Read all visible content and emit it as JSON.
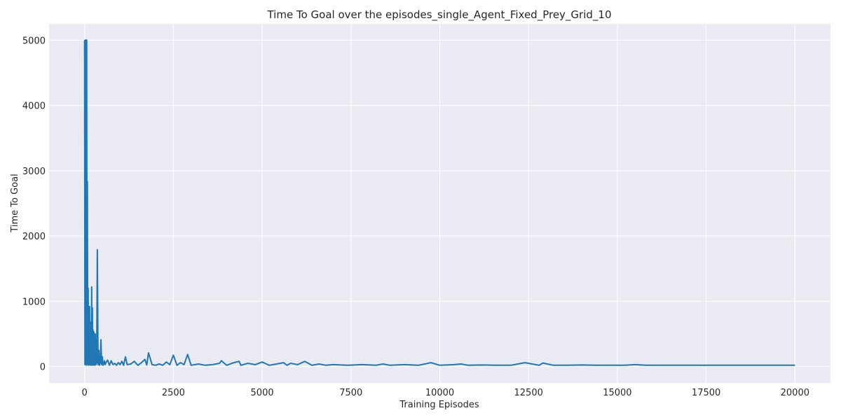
{
  "chart_data": {
    "type": "line",
    "title": "Time To Goal over the episodes_single_Agent_Fixed_Prey_Grid_10",
    "xlabel": "Training Episodes",
    "ylabel": "Time To Goal",
    "xlim": [
      -1000,
      21000
    ],
    "ylim": [
      -250,
      5250
    ],
    "xticks": [
      0,
      2500,
      5000,
      7500,
      10000,
      12500,
      15000,
      17500,
      20000
    ],
    "yticks": [
      0,
      1000,
      2000,
      3000,
      4000,
      5000
    ],
    "grid": true,
    "style": {
      "background": "#eaeaf2",
      "grid_color": "#ffffff",
      "line_color": "#1f77b4"
    },
    "series": [
      {
        "x": [
          0,
          10,
          20,
          30,
          40,
          50,
          60,
          70,
          80,
          90,
          100,
          110,
          120,
          130,
          140,
          150,
          160,
          170,
          180,
          190,
          200,
          210,
          220,
          230,
          240,
          250,
          260,
          270,
          280,
          290,
          300,
          320,
          340,
          360,
          380,
          400,
          420,
          440,
          460,
          480,
          500,
          520,
          540,
          560,
          580,
          600,
          650,
          700,
          750,
          800,
          850,
          900,
          950,
          1000,
          1050,
          1100,
          1150,
          1200,
          1300,
          1400,
          1500,
          1600,
          1700,
          1750,
          1800,
          1900,
          2000,
          2100,
          2200,
          2300,
          2400,
          2500,
          2600,
          2700,
          2800,
          2900,
          3000,
          3200,
          3400,
          3600,
          3800,
          3850,
          4000,
          4200,
          4350,
          4400,
          4600,
          4800,
          5000,
          5200,
          5400,
          5600,
          5700,
          5800,
          6000,
          6200,
          6400,
          6600,
          6800,
          7000,
          7400,
          7800,
          8200,
          8400,
          8600,
          9000,
          9400,
          9750,
          10000,
          10400,
          10600,
          10800,
          11200,
          11600,
          12000,
          12400,
          12800,
          12900,
          13200,
          13600,
          14000,
          14400,
          14800,
          15200,
          15500,
          15800,
          16200,
          16600,
          17000,
          17400,
          17800,
          18200,
          18600,
          19000,
          19400,
          19800,
          20000
        ],
        "y": [
          5000,
          30,
          5000,
          40,
          5000,
          20,
          5000,
          60,
          2830,
          30,
          1200,
          20,
          600,
          40,
          920,
          25,
          680,
          30,
          450,
          20,
          1220,
          35,
          900,
          20,
          560,
          25,
          530,
          30,
          250,
          20,
          500,
          30,
          60,
          1790,
          30,
          250,
          20,
          60,
          410,
          30,
          150,
          20,
          40,
          90,
          30,
          60,
          100,
          20,
          90,
          30,
          50,
          20,
          60,
          30,
          80,
          20,
          150,
          30,
          40,
          80,
          20,
          60,
          110,
          25,
          210,
          30,
          20,
          40,
          20,
          70,
          30,
          175,
          20,
          60,
          30,
          185,
          20,
          40,
          20,
          30,
          50,
          90,
          20,
          60,
          80,
          20,
          50,
          30,
          70,
          20,
          40,
          60,
          20,
          50,
          30,
          80,
          20,
          40,
          20,
          30,
          20,
          30,
          20,
          40,
          20,
          30,
          20,
          60,
          20,
          30,
          40,
          20,
          25,
          20,
          20,
          60,
          20,
          55,
          20,
          20,
          25,
          20,
          20,
          20,
          30,
          20,
          20,
          20,
          20,
          20,
          20,
          20,
          20,
          20,
          20,
          20,
          20
        ]
      }
    ]
  }
}
